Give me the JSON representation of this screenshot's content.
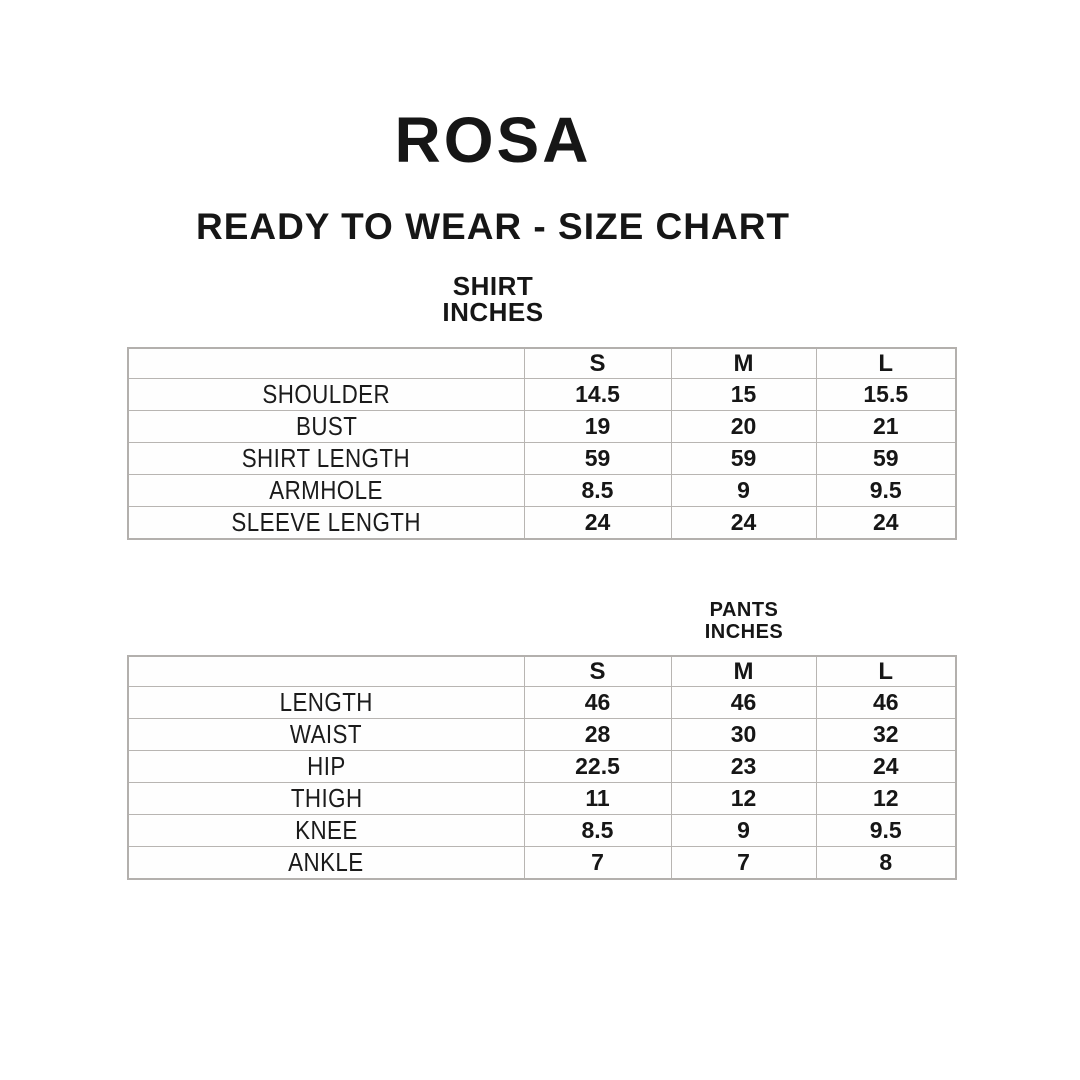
{
  "header": {
    "brand": "ROSA",
    "subtitle": "READY TO WEAR - SIZE CHART"
  },
  "shirt_section": {
    "title_line1": "SHIRT",
    "title_line2": "INCHES"
  },
  "pants_section": {
    "title_line1": "PANTS",
    "title_line2": "INCHES"
  },
  "chart_data": [
    {
      "type": "table",
      "title": "SHIRT INCHES",
      "columns": [
        "",
        "S",
        "M",
        "L"
      ],
      "rows": [
        {
          "label": "SHOULDER",
          "values": [
            "14.5",
            "15",
            "15.5"
          ]
        },
        {
          "label": "BUST",
          "values": [
            "19",
            "20",
            "21"
          ]
        },
        {
          "label": "SHIRT LENGTH",
          "values": [
            "59",
            "59",
            "59"
          ]
        },
        {
          "label": "ARMHOLE",
          "values": [
            "8.5",
            "9",
            "9.5"
          ]
        },
        {
          "label": "SLEEVE LENGTH",
          "values": [
            "24",
            "24",
            "24"
          ]
        }
      ]
    },
    {
      "type": "table",
      "title": "PANTS INCHES",
      "columns": [
        "",
        "S",
        "M",
        "L"
      ],
      "rows": [
        {
          "label": "LENGTH",
          "values": [
            "46",
            "46",
            "46"
          ]
        },
        {
          "label": "WAIST",
          "values": [
            "28",
            "30",
            "32"
          ]
        },
        {
          "label": "HIP",
          "values": [
            "22.5",
            "23",
            "24"
          ]
        },
        {
          "label": "THIGH",
          "values": [
            "11",
            "12",
            "12"
          ]
        },
        {
          "label": "KNEE",
          "values": [
            "8.5",
            "9",
            "9.5"
          ]
        },
        {
          "label": "ANKLE",
          "values": [
            "7",
            "7",
            "8"
          ]
        }
      ]
    }
  ],
  "colors": {
    "background": "#ffffff",
    "text": "#161616",
    "table_border": "#b8b5b2"
  }
}
